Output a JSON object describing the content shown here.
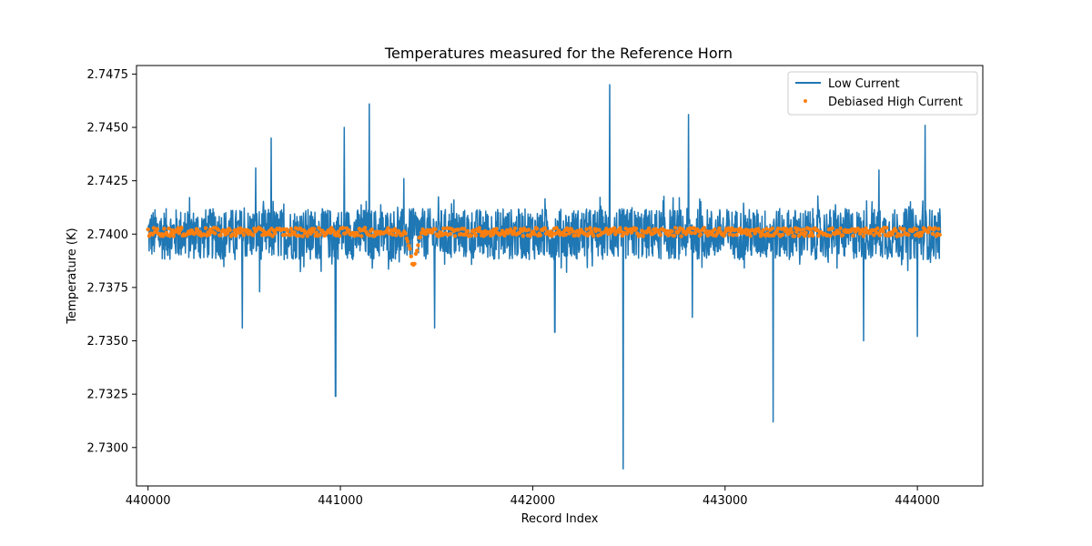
{
  "chart_data": {
    "type": "line",
    "title": "Temperatures measured for the Reference Horn",
    "xlabel": "Record Index",
    "ylabel": "Temperature (K)",
    "xlim": [
      439940,
      444340
    ],
    "ylim": [
      2.7282,
      2.7479
    ],
    "xticks": [
      440000,
      441000,
      442000,
      443000,
      444000
    ],
    "xtick_labels": [
      "440000",
      "441000",
      "442000",
      "443000",
      "444000"
    ],
    "yticks": [
      2.73,
      2.7325,
      2.735,
      2.7375,
      2.74,
      2.7425,
      2.745,
      2.7475
    ],
    "ytick_labels": [
      "2.7300",
      "2.7325",
      "2.7350",
      "2.7375",
      "2.7400",
      "2.7425",
      "2.7450",
      "2.7475"
    ],
    "grid": false,
    "legend_position": "top-right",
    "series": [
      {
        "name": "Low Current",
        "kind": "line",
        "color": "#1f77b4",
        "x_range": [
          440000,
          444120
        ],
        "baseline": 2.74,
        "noise_amplitude": 0.0012,
        "spikes": [
          {
            "x": 440490,
            "y": 2.7356
          },
          {
            "x": 440560,
            "y": 2.7431
          },
          {
            "x": 440580,
            "y": 2.7373
          },
          {
            "x": 440640,
            "y": 2.7445
          },
          {
            "x": 440975,
            "y": 2.7324
          },
          {
            "x": 441020,
            "y": 2.745
          },
          {
            "x": 441150,
            "y": 2.7461
          },
          {
            "x": 441330,
            "y": 2.7426
          },
          {
            "x": 441490,
            "y": 2.7356
          },
          {
            "x": 442115,
            "y": 2.7354
          },
          {
            "x": 442400,
            "y": 2.747
          },
          {
            "x": 442470,
            "y": 2.729
          },
          {
            "x": 442810,
            "y": 2.7456
          },
          {
            "x": 442830,
            "y": 2.7361
          },
          {
            "x": 443250,
            "y": 2.7312
          },
          {
            "x": 443720,
            "y": 2.735
          },
          {
            "x": 443800,
            "y": 2.743
          },
          {
            "x": 444000,
            "y": 2.7352
          },
          {
            "x": 444040,
            "y": 2.7451
          }
        ]
      },
      {
        "name": "Debiased High Current",
        "kind": "scatter",
        "color": "#ff7f0e",
        "x_range": [
          440000,
          444120
        ],
        "baseline": 2.7401,
        "noise_amplitude": 0.0002,
        "dip": {
          "x": 441380,
          "y": 2.7385
        }
      }
    ]
  }
}
